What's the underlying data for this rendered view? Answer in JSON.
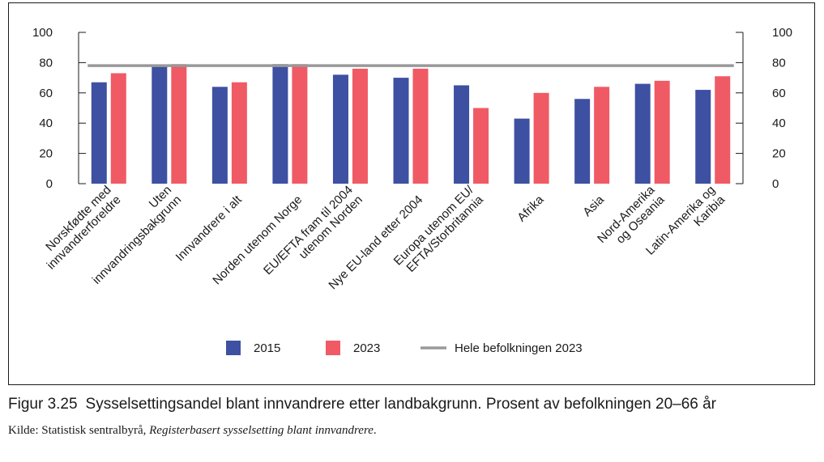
{
  "figure": {
    "number": "Figur 3.25",
    "title": "Sysselsettingsandel blant innvandrere etter landbakgrunn. Prosent av befolkningen 20–66 år",
    "source_prefix": "Kilde: Statistisk sentralbyrå, ",
    "source_title": "Registerbasert sysselsetting blant innvandrere",
    "source_suffix": "."
  },
  "chart_data": {
    "type": "bar",
    "categories": [
      [
        "Norskfødte med",
        "innvandrerforeldre"
      ],
      [
        "Uten",
        "innvandringsbakgrunn"
      ],
      [
        "Innvandrere i alt"
      ],
      [
        "Norden utenom Norge"
      ],
      [
        "EU/EFTA fram til 2004",
        "utenom Norden"
      ],
      [
        "Nye EU-land etter 2004"
      ],
      [
        "Europa utenom EU/",
        "EFTA/Storbritannia"
      ],
      [
        "Afrika"
      ],
      [
        "Asia"
      ],
      [
        "Nord-Amerika",
        "og Oseania"
      ],
      [
        "Latin-Amerika og",
        "Karibia"
      ]
    ],
    "series": [
      {
        "name": "2015",
        "color": "#3d50a2",
        "values": [
          67,
          78,
          64,
          79,
          72,
          70,
          65,
          43,
          56,
          66,
          62
        ]
      },
      {
        "name": "2023",
        "color": "#f05a64",
        "values": [
          73,
          79,
          67,
          79,
          76,
          76,
          50,
          60,
          64,
          68,
          71
        ]
      }
    ],
    "reference_line": {
      "name": "Hele befolkningen 2023",
      "value": 78,
      "color": "#999999"
    },
    "ylim": [
      0,
      100
    ],
    "yticks": [
      0,
      20,
      40,
      60,
      80,
      100
    ],
    "y_axis_both_sides": true,
    "grid": false,
    "legend_position": "bottom"
  }
}
